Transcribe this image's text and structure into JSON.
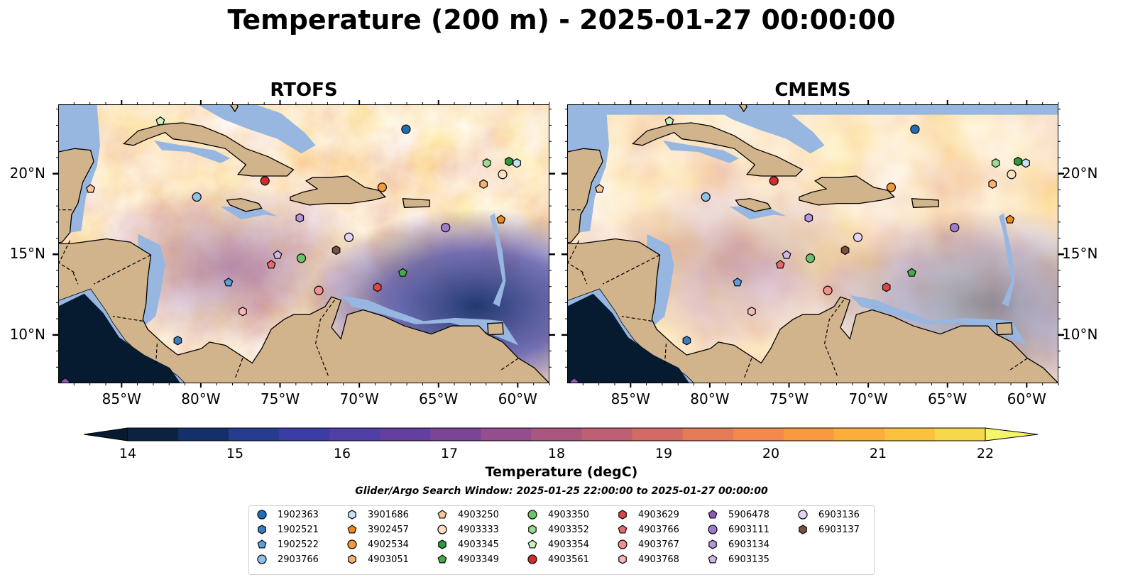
{
  "title": "Temperature (200 m) - 2025-01-27 00:00:00",
  "panels": [
    {
      "title": "RTOFS"
    },
    {
      "title": "CMEMS"
    }
  ],
  "axes": {
    "lon_ticks": [
      "85°W",
      "80°W",
      "75°W",
      "70°W",
      "65°W",
      "60°W"
    ],
    "lat_ticks": [
      "20°N",
      "15°N",
      "10°N"
    ],
    "lon_range": [
      -89,
      -58
    ],
    "lat_range": [
      7,
      24.3
    ]
  },
  "colorbar": {
    "label": "Temperature (degC)",
    "ticks": [
      "14",
      "15",
      "16",
      "17",
      "18",
      "19",
      "20",
      "21",
      "22"
    ],
    "min": 14,
    "max": 22,
    "extend": "both",
    "colors": [
      "#0b2240",
      "#14306a",
      "#263c8f",
      "#3b3da6",
      "#5040a6",
      "#643f9f",
      "#7c4497",
      "#944d8e",
      "#a9577f",
      "#bf5f73",
      "#d26a66",
      "#e47a58",
      "#f3894a",
      "#fa9a40",
      "#fcad3c",
      "#fcc13f",
      "#f7d84d"
    ],
    "under_color": "#061a30",
    "over_color": "#f4f56c"
  },
  "subtitle": "Glider/Argo Search Window: 2025-01-25 22:00:00 to 2025-01-27 00:00:00",
  "legend": [
    {
      "id": "1902363",
      "color": "#1f6fb8",
      "marker": "circle"
    },
    {
      "id": "1902521",
      "color": "#3a7fc4",
      "marker": "hexagon"
    },
    {
      "id": "1902522",
      "color": "#5a9ee0",
      "marker": "pentagon"
    },
    {
      "id": "2903766",
      "color": "#8fc0ea",
      "marker": "circle"
    },
    {
      "id": "3901686",
      "color": "#c6e2f7",
      "marker": "hexagon"
    },
    {
      "id": "3902457",
      "color": "#f28a1a",
      "marker": "pentagon"
    },
    {
      "id": "4902534",
      "color": "#f59a3b",
      "marker": "circle"
    },
    {
      "id": "4903051",
      "color": "#f8b36e",
      "marker": "hexagon"
    },
    {
      "id": "4903250",
      "color": "#fbc898",
      "marker": "pentagon"
    },
    {
      "id": "4903333",
      "color": "#fde0c4",
      "marker": "circle"
    },
    {
      "id": "4903345",
      "color": "#2a9a3a",
      "marker": "hexagon"
    },
    {
      "id": "4903349",
      "color": "#46ad46",
      "marker": "pentagon"
    },
    {
      "id": "4903350",
      "color": "#6cc46a",
      "marker": "circle"
    },
    {
      "id": "4903352",
      "color": "#9ddb94",
      "marker": "hexagon"
    },
    {
      "id": "4903354",
      "color": "#caf0c0",
      "marker": "pentagon"
    },
    {
      "id": "4903561",
      "color": "#d42a2a",
      "marker": "circle"
    },
    {
      "id": "4903629",
      "color": "#e04545",
      "marker": "hexagon"
    },
    {
      "id": "4903766",
      "color": "#ea6a6a",
      "marker": "pentagon"
    },
    {
      "id": "4903767",
      "color": "#f29090",
      "marker": "circle"
    },
    {
      "id": "4903768",
      "color": "#f8b8b8",
      "marker": "hexagon"
    },
    {
      "id": "5906478",
      "color": "#8a5ab8",
      "marker": "pentagon"
    },
    {
      "id": "6903111",
      "color": "#a07acc",
      "marker": "circle"
    },
    {
      "id": "6903134",
      "color": "#b898dc",
      "marker": "hexagon"
    },
    {
      "id": "6903135",
      "color": "#d0b8ea",
      "marker": "pentagon"
    },
    {
      "id": "6903136",
      "color": "#e4d4f4",
      "marker": "circle"
    },
    {
      "id": "6903137",
      "color": "#7a5040",
      "marker": "hexagon"
    }
  ],
  "floats": [
    {
      "id": "1902363",
      "lon": -67.1,
      "lat": 22.8
    },
    {
      "id": "2903766",
      "lon": -80.3,
      "lat": 18.6
    },
    {
      "id": "4903561",
      "lon": -76.0,
      "lat": 19.6
    },
    {
      "id": "4903354",
      "lon": -82.6,
      "lat": 23.3
    },
    {
      "id": "4903250",
      "lon": -87.0,
      "lat": 19.1
    },
    {
      "id": "4902534",
      "lon": -68.6,
      "lat": 19.2
    },
    {
      "id": "4903352",
      "lon": -62.0,
      "lat": 20.7
    },
    {
      "id": "4903345",
      "lon": -60.6,
      "lat": 20.8
    },
    {
      "id": "3901686",
      "lon": -60.1,
      "lat": 20.7
    },
    {
      "id": "4903333",
      "lon": -61.0,
      "lat": 20.0
    },
    {
      "id": "4903051",
      "lon": -62.2,
      "lat": 19.4
    },
    {
      "id": "3902457",
      "lon": -61.1,
      "lat": 17.2
    },
    {
      "id": "6903134",
      "lon": -73.8,
      "lat": 17.3
    },
    {
      "id": "6903136",
      "lon": -70.7,
      "lat": 16.1
    },
    {
      "id": "6903111",
      "lon": -64.6,
      "lat": 16.7
    },
    {
      "id": "6903137",
      "lon": -71.5,
      "lat": 15.3
    },
    {
      "id": "6903135",
      "lon": -75.2,
      "lat": 15.0
    },
    {
      "id": "4903350",
      "lon": -73.7,
      "lat": 14.8
    },
    {
      "id": "4903766",
      "lon": -75.6,
      "lat": 14.4
    },
    {
      "id": "4903349",
      "lon": -67.3,
      "lat": 13.9
    },
    {
      "id": "1902522",
      "lon": -78.3,
      "lat": 13.3
    },
    {
      "id": "4903767",
      "lon": -72.6,
      "lat": 12.8
    },
    {
      "id": "4903629",
      "lon": -68.9,
      "lat": 13.0
    },
    {
      "id": "4903768",
      "lon": -77.4,
      "lat": 11.5
    },
    {
      "id": "1902521",
      "lon": -81.5,
      "lat": 9.7
    },
    {
      "id": "5906478",
      "lon": -88.6,
      "lat": 7.1
    }
  ]
}
